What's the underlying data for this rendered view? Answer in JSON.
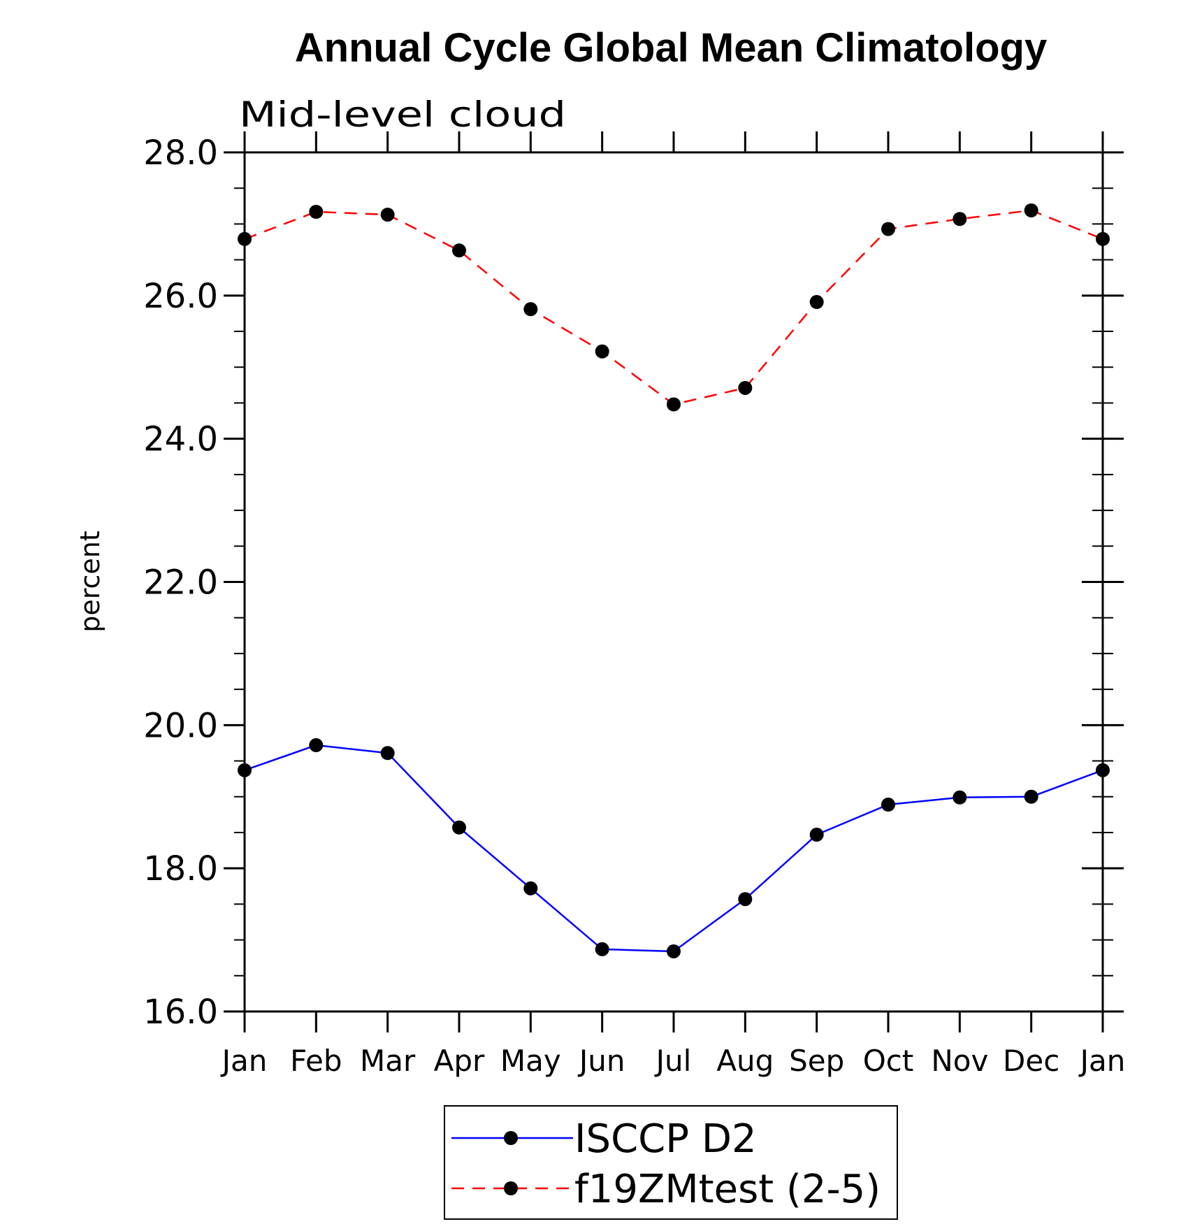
{
  "chart_data": {
    "type": "line",
    "title": "Annual Cycle Global Mean Climatology",
    "subtitle": "Mid-level cloud",
    "xlabel": "",
    "ylabel": "percent",
    "categories": [
      "Jan",
      "Feb",
      "Mar",
      "Apr",
      "May",
      "Jun",
      "Jul",
      "Aug",
      "Sep",
      "Oct",
      "Nov",
      "Dec",
      "Jan"
    ],
    "ylim": [
      16.0,
      28.0
    ],
    "y_ticks": [
      "16.0",
      "18.0",
      "20.0",
      "22.0",
      "24.0",
      "26.0",
      "28.0"
    ],
    "grid": false,
    "legend_position": "bottom-center",
    "series": [
      {
        "name": "ISCCP D2",
        "color": "#0000ff",
        "line_style": "solid",
        "marker": "filled-circle",
        "values": [
          19.37,
          19.72,
          19.61,
          18.57,
          17.72,
          16.87,
          16.84,
          17.57,
          18.47,
          18.89,
          18.99,
          19.0,
          19.37
        ]
      },
      {
        "name": "f19ZMtest (2-5)",
        "color": "#ff0000",
        "line_style": "dashed",
        "marker": "filled-circle",
        "values": [
          26.79,
          27.17,
          27.13,
          26.63,
          25.81,
          25.22,
          24.48,
          24.71,
          25.91,
          26.93,
          27.07,
          27.19,
          26.79
        ]
      }
    ]
  }
}
